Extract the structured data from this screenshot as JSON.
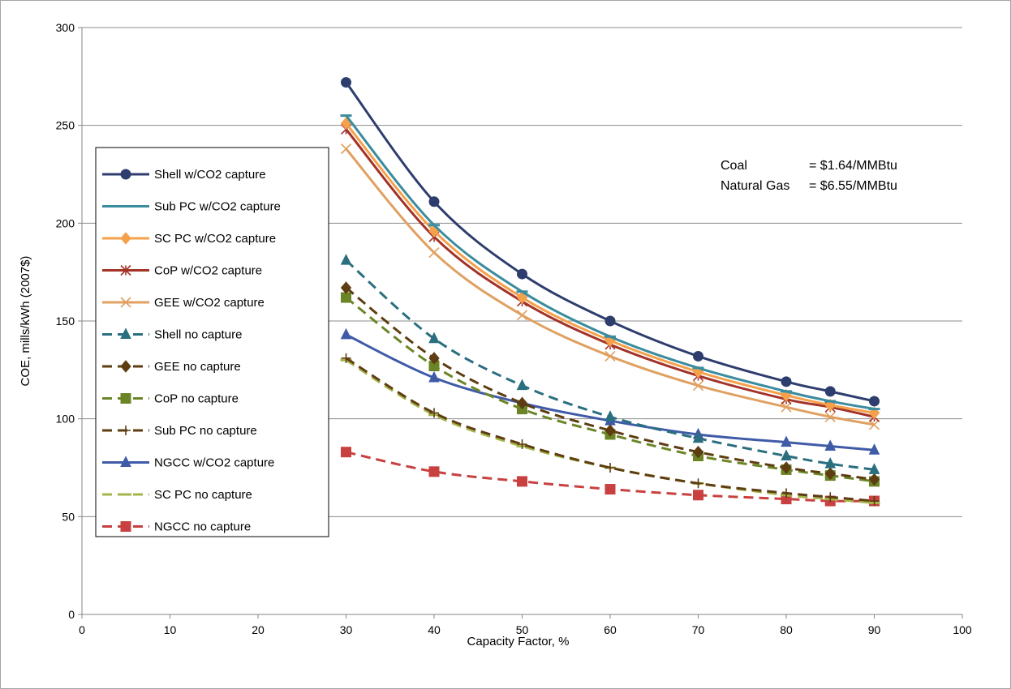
{
  "chart_data": {
    "type": "line",
    "title": "",
    "xlabel": "Capacity Factor, %",
    "ylabel": "COE, mills/kWh (2007$)",
    "xlim": [
      0,
      100
    ],
    "ylim": [
      0,
      300
    ],
    "xticks": [
      0,
      10,
      20,
      30,
      40,
      50,
      60,
      70,
      80,
      90,
      100
    ],
    "yticks": [
      0,
      50,
      100,
      150,
      200,
      250,
      300
    ],
    "grid": "horizontal",
    "legend_position": "left",
    "x": [
      30,
      40,
      50,
      60,
      70,
      80,
      85,
      90
    ],
    "annotations": [
      {
        "label": "Coal",
        "value": "= $1.64/MMBtu"
      },
      {
        "label": "Natural Gas",
        "value": "= $6.55/MMBtu"
      }
    ],
    "series": [
      {
        "name": "Shell w/CO2 capture",
        "color": "#2d3d6e",
        "dash": "solid",
        "marker": "circle",
        "values": [
          272,
          211,
          174,
          150,
          132,
          119,
          114,
          109
        ]
      },
      {
        "name": "Sub PC w/CO2 capture",
        "color": "#3a8c9e",
        "dash": "solid",
        "marker": "dash",
        "values": [
          255,
          199,
          165,
          142,
          126,
          114,
          109,
          105
        ]
      },
      {
        "name": "SC PC w/CO2 capture",
        "color": "#f5a04a",
        "dash": "solid",
        "marker": "diamond",
        "values": [
          251,
          196,
          162,
          140,
          124,
          112,
          107,
          103
        ]
      },
      {
        "name": "CoP w/CO2 capture",
        "color": "#a33228",
        "dash": "solid",
        "marker": "asterisk",
        "values": [
          248,
          193,
          160,
          138,
          122,
          110,
          106,
          101
        ]
      },
      {
        "name": "GEE w/CO2 capture",
        "color": "#e0a060",
        "dash": "solid",
        "marker": "x",
        "values": [
          238,
          185,
          153,
          132,
          117,
          106,
          101,
          97
        ]
      },
      {
        "name": "Shell no capture",
        "color": "#2a6f7f",
        "dash": "dashed",
        "marker": "triangle",
        "values": [
          181,
          141,
          117,
          101,
          90,
          81,
          77,
          74
        ]
      },
      {
        "name": "GEE no capture",
        "color": "#5e3d12",
        "dash": "dashed",
        "marker": "diamond",
        "values": [
          167,
          131,
          108,
          94,
          83,
          75,
          72,
          69
        ]
      },
      {
        "name": "CoP no capture",
        "color": "#6b8526",
        "dash": "dashed",
        "marker": "square",
        "values": [
          162,
          127,
          105,
          92,
          81,
          74,
          71,
          68
        ]
      },
      {
        "name": "Sub PC no capture",
        "color": "#5e3d12",
        "dash": "dashed",
        "marker": "plus",
        "values": [
          131,
          103,
          87,
          75,
          67,
          62,
          60,
          58
        ]
      },
      {
        "name": "NGCC w/CO2 capture",
        "color": "#3f5ba8",
        "dash": "solid",
        "marker": "triangle",
        "values": [
          143,
          121,
          108,
          99,
          92,
          88,
          86,
          84
        ]
      },
      {
        "name": "SC PC no capture",
        "color": "#a4b44a",
        "dash": "dashed",
        "marker": "dash",
        "values": [
          130,
          102,
          86,
          75,
          67,
          61,
          59,
          57
        ]
      },
      {
        "name": "NGCC no capture",
        "color": "#c84040",
        "dash": "dashed",
        "marker": "square",
        "values": [
          83,
          73,
          68,
          64,
          61,
          59,
          58,
          58
        ]
      }
    ]
  }
}
